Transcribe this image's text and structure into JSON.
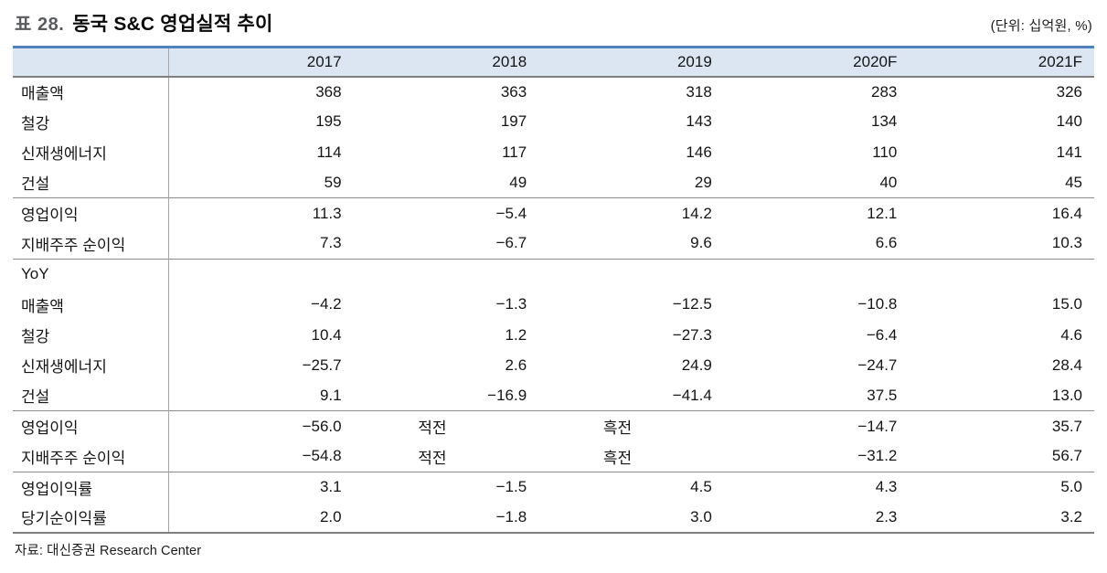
{
  "title": {
    "label": "표 28.",
    "text": "동국 S&C 영업실적 추이"
  },
  "unit_note": "(단위: 십억원, %)",
  "colors": {
    "accent_blue": "#4F81BD",
    "header_bg": "#DCE6F2",
    "border_gray": "#7F7F7F"
  },
  "table": {
    "columns": [
      "",
      "2017",
      "2018",
      "2019",
      "2020F",
      "2021F"
    ],
    "sections": [
      {
        "rows": [
          [
            "매출액",
            "368",
            "363",
            "318",
            "283",
            "326"
          ],
          [
            "철강",
            "195",
            "197",
            "143",
            "134",
            "140"
          ],
          [
            "신재생에너지",
            "114",
            "117",
            "146",
            "110",
            "141"
          ],
          [
            "건설",
            "59",
            "49",
            "29",
            "40",
            "45"
          ]
        ]
      },
      {
        "rows": [
          [
            "영업이익",
            "11.3",
            "−5.4",
            "14.2",
            "12.1",
            "16.4"
          ],
          [
            "지배주주 순이익",
            "7.3",
            "−6.7",
            "9.6",
            "6.6",
            "10.3"
          ]
        ]
      },
      {
        "rows": [
          [
            "YoY",
            "",
            "",
            "",
            "",
            ""
          ],
          [
            "매출액",
            "−4.2",
            "−1.3",
            "−12.5",
            "−10.8",
            "15.0"
          ],
          [
            "철강",
            "10.4",
            "1.2",
            "−27.3",
            "−6.4",
            "4.6"
          ],
          [
            "신재생에너지",
            "−25.7",
            "2.6",
            "24.9",
            "−24.7",
            "28.4"
          ],
          [
            "건설",
            "9.1",
            "−16.9",
            "−41.4",
            "37.5",
            "13.0"
          ]
        ]
      },
      {
        "rows": [
          [
            "영업이익",
            "−56.0",
            "적전",
            "흑전",
            "−14.7",
            "35.7"
          ],
          [
            "지배주주 순이익",
            "−54.8",
            "적전",
            "흑전",
            "−31.2",
            "56.7"
          ]
        ]
      },
      {
        "rows": [
          [
            "영업이익률",
            "3.1",
            "−1.5",
            "4.5",
            "4.3",
            "5.0"
          ],
          [
            "당기순이익률",
            "2.0",
            "−1.8",
            "3.0",
            "2.3",
            "3.2"
          ]
        ]
      }
    ]
  },
  "source": "자료: 대신증권 Research Center"
}
